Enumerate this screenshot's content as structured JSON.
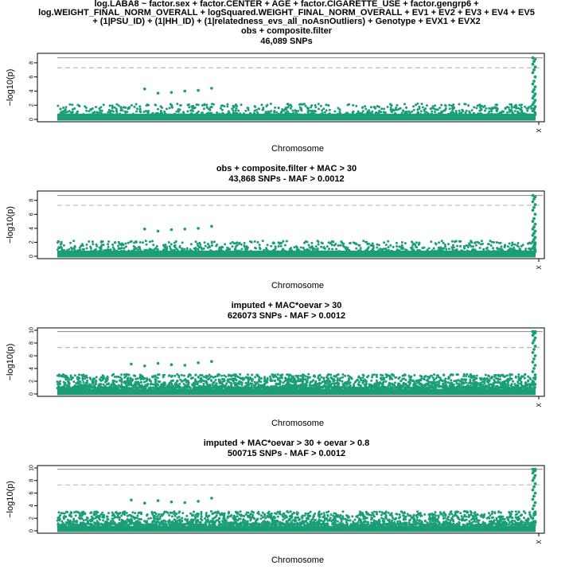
{
  "figure": {
    "title_lines": [
      "log.LABA8 ~ factor.sex + factor.CENTER + AGE + factor.CIGARETTE_USE + factor.gengrp6 +",
      "log.WEIGHT_FINAL_NORM_OVERALL + logSquared.WEIGHT_FINAL_NORM_OVERALL + EV1 + EV2 + EV3 + EV4 + EV5",
      "+ (1|PSU_ID) + (1|HH_ID) + (1|relatedness_evs_all_noAsnOutliers) + Genotype + EVX1 + EVX2"
    ]
  },
  "colors": {
    "points": "#1b9e77",
    "threshold_line": "#bbbbbb",
    "top_line": "#888888",
    "axis": "#000000"
  },
  "chart_data": [
    {
      "type": "scatter",
      "title": "obs + composite.filter",
      "subtitle": "46,089 SNPs",
      "xlabel": "Chromosome",
      "ylabel": "−log10(p)",
      "x_ticks": [
        "X"
      ],
      "y_ticks": [
        0,
        2,
        4,
        6,
        8
      ],
      "ylim": [
        0,
        9
      ],
      "significance_threshold": 7.3,
      "max_line": 8.7,
      "background": {
        "median": 0.6,
        "spread": 1.6,
        "peak_max": 4.4,
        "count": 900
      },
      "x_region_values": [
        0.3,
        0.6,
        0.9,
        1.2,
        1.5,
        1.8,
        2.1,
        2.4,
        2.7,
        3.0,
        3.3,
        3.6,
        3.9,
        4.2,
        4.6,
        5.0,
        5.4,
        6.0,
        6.6,
        7.0,
        7.4,
        7.8,
        8.2,
        8.5,
        8.7
      ],
      "scattered_high_points": [
        4.4,
        4.1,
        4.0,
        3.8,
        3.7,
        4.3
      ]
    },
    {
      "type": "scatter",
      "title": "obs + composite.filter + MAC > 30",
      "subtitle": "43,868 SNPs - MAF > 0.0012",
      "xlabel": "Chromosome",
      "ylabel": "−log10(p)",
      "x_ticks": [
        "X"
      ],
      "y_ticks": [
        0,
        2,
        4,
        6,
        8
      ],
      "ylim": [
        0,
        9
      ],
      "significance_threshold": 7.3,
      "max_line": 8.7,
      "background": {
        "median": 0.6,
        "spread": 1.6,
        "peak_max": 4.3,
        "count": 880
      },
      "x_region_values": [
        0.3,
        0.6,
        0.9,
        1.2,
        1.5,
        1.8,
        2.1,
        2.4,
        2.7,
        3.0,
        3.3,
        3.6,
        3.9,
        4.2,
        4.6,
        5.0,
        5.4,
        6.0,
        6.6,
        7.0,
        7.4,
        7.8,
        8.2,
        8.5,
        8.7
      ],
      "scattered_high_points": [
        4.3,
        4.0,
        3.9,
        3.8,
        3.6,
        3.9
      ]
    },
    {
      "type": "scatter",
      "title": "imputed + MAC*oevar > 30",
      "subtitle": "626073 SNPs - MAF > 0.0012",
      "xlabel": "Chromosome",
      "ylabel": "−log10(p)",
      "x_ticks": [
        "X"
      ],
      "y_ticks": [
        0,
        2,
        4,
        6,
        8,
        10
      ],
      "ylim": [
        0,
        10
      ],
      "significance_threshold": 7.3,
      "max_line": 9.8,
      "background": {
        "median": 0.9,
        "spread": 2.2,
        "peak_max": 5.1,
        "count": 2200
      },
      "x_region_values": [
        0.5,
        1.0,
        1.5,
        2.0,
        2.5,
        3.0,
        3.5,
        4.0,
        4.5,
        5.0,
        5.5,
        6.0,
        6.5,
        7.0,
        7.5,
        8.0,
        8.4,
        8.8,
        9.2,
        9.5,
        9.8,
        9.8,
        9.7,
        9.6
      ],
      "scattered_high_points": [
        5.1,
        4.9,
        4.5,
        4.6,
        4.8,
        4.4,
        4.7
      ]
    },
    {
      "type": "scatter",
      "title": "imputed + MAC*oevar > 30 + oevar > 0.8",
      "subtitle": "500715 SNPs - MAF > 0.0012",
      "xlabel": "Chromosome",
      "ylabel": "−log10(p)",
      "x_ticks": [
        "X"
      ],
      "y_ticks": [
        0,
        2,
        4,
        6,
        8,
        10
      ],
      "ylim": [
        0,
        10
      ],
      "significance_threshold": 7.3,
      "max_line": 9.8,
      "background": {
        "median": 0.9,
        "spread": 2.2,
        "peak_max": 5.2,
        "count": 2000
      },
      "x_region_values": [
        0.5,
        1.0,
        1.5,
        2.0,
        2.5,
        3.0,
        3.5,
        4.0,
        4.5,
        5.0,
        5.5,
        6.0,
        6.5,
        7.0,
        7.5,
        8.0,
        8.4,
        8.8,
        9.2,
        9.5,
        9.8,
        9.8,
        9.7,
        9.6
      ],
      "scattered_high_points": [
        5.2,
        4.7,
        4.5,
        4.6,
        4.8,
        4.4,
        4.9
      ]
    }
  ]
}
